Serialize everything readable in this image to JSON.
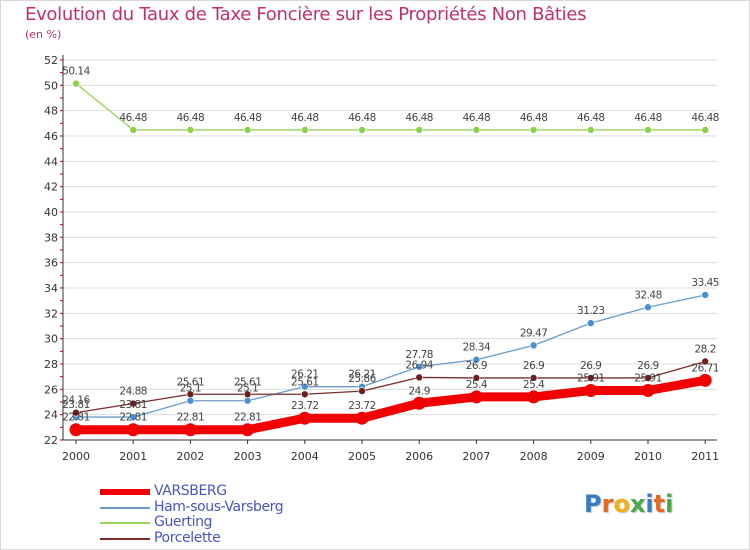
{
  "colors": {
    "title": "#c0306a",
    "legend_text": "#4a55c0",
    "axis": "#333333",
    "grid": "#d8d8d8"
  },
  "legend": [
    {
      "label": "VARSBERG",
      "color": "#f00000"
    },
    {
      "label": "Ham-sous-Varsberg",
      "color": "#6c9bc9"
    },
    {
      "label": "Guerting",
      "color": "#99d35a"
    },
    {
      "label": "Porcelette",
      "color": "#7a2c2c"
    }
  ],
  "brand": {
    "text": "Proxiti",
    "letters": [
      "P",
      "r",
      "o",
      "x",
      "i",
      "t",
      "i"
    ],
    "letter_colors": [
      "#3a7cc4",
      "#e8681e",
      "#f0b01c",
      "#4aa84a",
      "#3a7cc4",
      "#e8681e",
      "#4aa84a"
    ]
  },
  "chart_data": {
    "type": "line",
    "title": "Evolution du Taux de Taxe Foncière sur les Propriétés Non Bâties",
    "ylabel": "(en %)",
    "xlabel": "",
    "ylim": [
      22,
      52
    ],
    "ytick_step": 2,
    "grid": "horizontal",
    "categories": [
      "2000",
      "2001",
      "2002",
      "2003",
      "2004",
      "2005",
      "2006",
      "2007",
      "2008",
      "2009",
      "2010",
      "2011"
    ],
    "series": [
      {
        "name": "VARSBERG",
        "color": "#f00000",
        "values": [
          22.81,
          22.81,
          22.81,
          22.81,
          23.72,
          23.72,
          24.9,
          25.4,
          25.4,
          25.91,
          25.91,
          26.71
        ],
        "labels": [
          "22.81",
          "22.81",
          "22.81",
          "22.81",
          "23.72",
          "23.72",
          "24.9",
          "25.4",
          "25.4",
          "25.91",
          "25.91",
          "26.71"
        ]
      },
      {
        "name": "Ham-sous-Varsberg",
        "color": "#6c9bc9",
        "values": [
          23.81,
          23.81,
          25.1,
          25.1,
          26.21,
          26.21,
          27.78,
          28.34,
          29.47,
          31.23,
          32.48,
          33.45
        ],
        "labels": [
          "23.81",
          "23.81",
          "25.1",
          "25.1",
          "26.21",
          "26.21",
          "27.78",
          "28.34",
          "29.47",
          "31.23",
          "32.48",
          "33.45"
        ]
      },
      {
        "name": "Guerting",
        "color": "#99d35a",
        "values": [
          50.14,
          46.48,
          46.48,
          46.48,
          46.48,
          46.48,
          46.48,
          46.48,
          46.48,
          46.48,
          46.48,
          46.48
        ],
        "labels": [
          "50.14",
          "46.48",
          "46.48",
          "46.48",
          "46.48",
          "46.48",
          "46.48",
          "46.48",
          "46.48",
          "46.48",
          "46.48",
          "46.48"
        ]
      },
      {
        "name": "Porcelette",
        "color": "#7a2c2c",
        "values": [
          24.16,
          24.88,
          25.61,
          25.61,
          25.61,
          25.86,
          26.94,
          26.9,
          26.9,
          26.9,
          26.9,
          28.2
        ],
        "labels": [
          "24.16",
          "24.88",
          "25.61",
          "25.61",
          "25.61",
          "25.86",
          "26.94",
          "26.9",
          "26.9",
          "26.9",
          "26.9",
          "28.2"
        ]
      }
    ]
  }
}
